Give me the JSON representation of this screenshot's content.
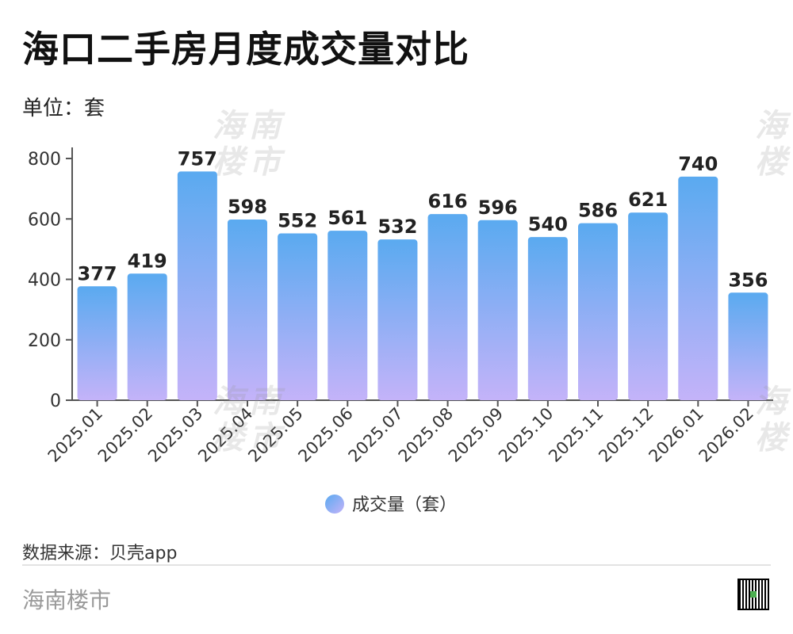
{
  "header": {
    "title": "海口二手房月度成交量对比",
    "unit": "单位：套"
  },
  "chart_data": {
    "type": "bar",
    "categories": [
      "2025.01",
      "2025.02",
      "2025.03",
      "2025.04",
      "2025.05",
      "2025.06",
      "2025.07",
      "2025.08",
      "2025.09",
      "2025.10",
      "2025.11",
      "2025.12",
      "2026.01",
      "2026.02"
    ],
    "series": [
      {
        "name": "成交量（套）",
        "values": [
          377,
          419,
          757,
          598,
          552,
          561,
          532,
          616,
          596,
          540,
          586,
          621,
          740,
          356
        ]
      }
    ],
    "ylim": [
      0,
      800
    ],
    "yticks": [
      0,
      200,
      400,
      600,
      800
    ],
    "grid": false,
    "legend_position": "bottom-center",
    "data_labels": true,
    "colors": {
      "bar_top": "#5aaaf0",
      "bar_bottom": "#c4b3f9",
      "axis": "#555555"
    }
  },
  "watermark": {
    "text": "海南\n楼市"
  },
  "footer": {
    "source": "数据来源：贝壳app",
    "brand": "海南楼市"
  }
}
